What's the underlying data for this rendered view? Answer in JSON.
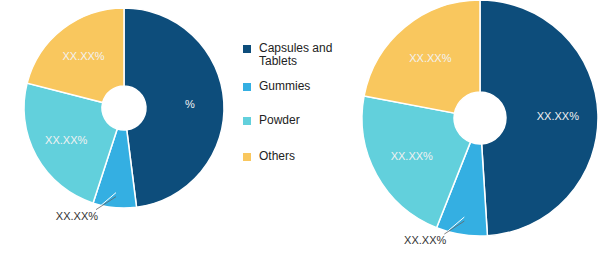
{
  "chart_data": [
    {
      "type": "pie",
      "categories": [
        "Capsules and Tablets",
        "Gummies",
        "Powder",
        "Others"
      ],
      "values": [
        48,
        7,
        24,
        21
      ],
      "value_labels": [
        "%",
        "XX.XX%",
        "XX.XX%",
        "XX.XX%"
      ],
      "colors": [
        "#0d4d7b",
        "#34afe2",
        "#62d0dc",
        "#f9c75e"
      ],
      "data_labels": true,
      "legend": "right"
    },
    {
      "type": "pie",
      "categories": [
        "Capsules and Tablets",
        "Gummies",
        "Powder",
        "Others"
      ],
      "values": [
        49,
        7,
        22,
        22
      ],
      "value_labels": [
        "XX.XX%",
        "XX.XX%",
        "XX.XX%",
        "XX.XX%"
      ],
      "colors": [
        "#0d4d7b",
        "#34afe2",
        "#62d0dc",
        "#f9c75e"
      ],
      "data_labels": true
    }
  ]
}
